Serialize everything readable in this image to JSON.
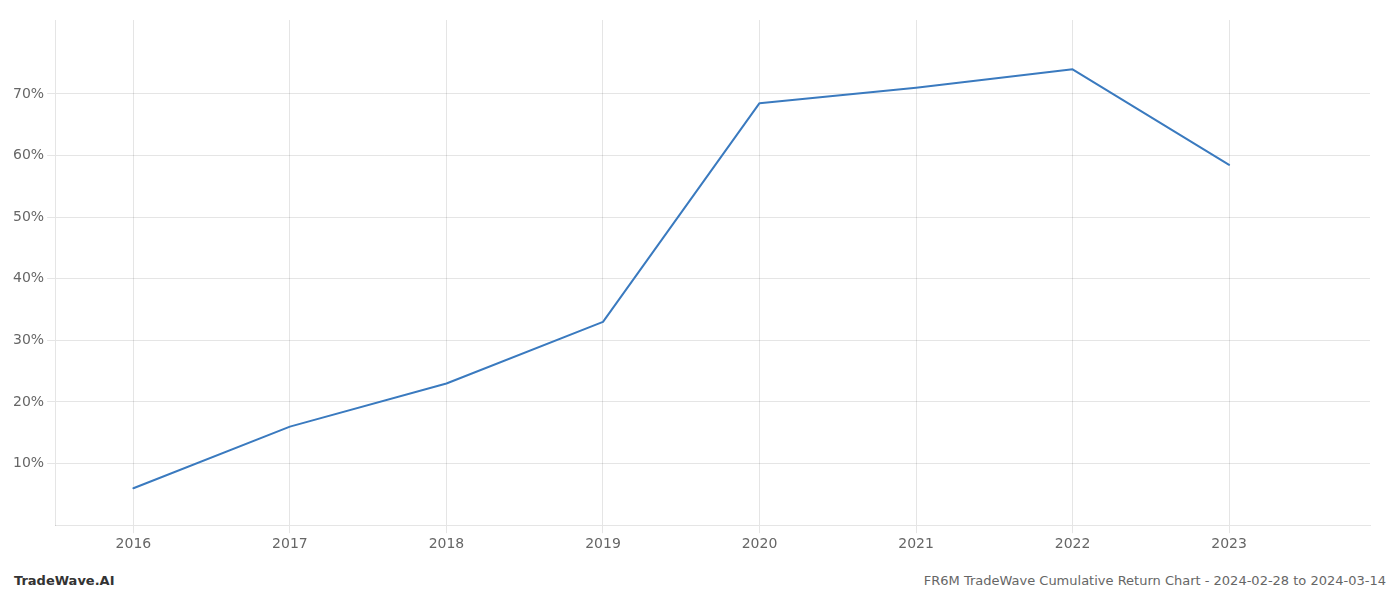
{
  "chart_data": {
    "type": "line",
    "title": "FR6M TradeWave Cumulative Return Chart - 2024-02-28 to 2024-03-14",
    "annotations": [
      "TradeWave.AI"
    ],
    "x": [
      2016,
      2017,
      2018,
      2019,
      2020,
      2021,
      2022,
      2023
    ],
    "values": [
      6.0,
      16.0,
      23.0,
      33.0,
      68.5,
      71.0,
      74.0,
      58.5
    ],
    "color": "#3a7abf",
    "xlim": [
      2015.5,
      2023.9
    ],
    "xticks": [
      2016,
      2017,
      2018,
      2019,
      2020,
      2021,
      2022,
      2023
    ],
    "ylim": [
      0,
      82
    ],
    "yticks": [
      {
        "value": 10,
        "label": "10%"
      },
      {
        "value": 20,
        "label": "20%"
      },
      {
        "value": 30,
        "label": "30%"
      },
      {
        "value": 40,
        "label": "40%"
      },
      {
        "value": 50,
        "label": "50%"
      },
      {
        "value": 60,
        "label": "60%"
      },
      {
        "value": 70,
        "label": "70%"
      }
    ],
    "grid": true
  }
}
